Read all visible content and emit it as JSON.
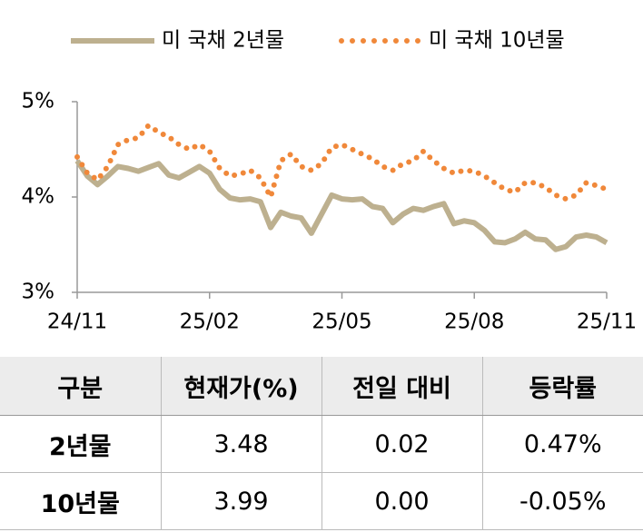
{
  "chart_data": {
    "type": "line",
    "categories": [
      "24/11",
      null,
      null,
      null,
      null,
      null,
      null,
      null,
      null,
      null,
      null,
      null,
      null,
      "25/02",
      null,
      null,
      null,
      null,
      null,
      null,
      null,
      null,
      null,
      null,
      null,
      null,
      "25/05",
      null,
      null,
      null,
      null,
      null,
      null,
      null,
      null,
      null,
      null,
      null,
      null,
      "25/08",
      null,
      null,
      null,
      null,
      null,
      null,
      null,
      null,
      null,
      null,
      null,
      null,
      "25/11"
    ],
    "series": [
      {
        "name": "미 국채 2년물",
        "color": "#bdb08f",
        "style": "solid",
        "values": [
          4.38,
          4.22,
          4.13,
          4.22,
          4.32,
          4.3,
          4.27,
          4.31,
          4.35,
          4.23,
          4.2,
          4.26,
          4.32,
          4.25,
          4.08,
          3.99,
          3.97,
          3.98,
          3.95,
          3.68,
          3.84,
          3.8,
          3.78,
          3.62,
          3.82,
          4.02,
          3.98,
          3.97,
          3.98,
          3.9,
          3.88,
          3.73,
          3.82,
          3.88,
          3.86,
          3.9,
          3.93,
          3.72,
          3.75,
          3.73,
          3.65,
          3.53,
          3.52,
          3.56,
          3.63,
          3.56,
          3.55,
          3.45,
          3.48,
          3.58,
          3.6,
          3.58,
          3.52
        ]
      },
      {
        "name": "미 국채 10년물",
        "color": "#f0883a",
        "style": "dotted",
        "values": [
          4.42,
          4.25,
          4.18,
          4.32,
          4.55,
          4.6,
          4.62,
          4.75,
          4.68,
          4.63,
          4.55,
          4.5,
          4.55,
          4.48,
          4.3,
          4.22,
          4.24,
          4.28,
          4.2,
          4.0,
          4.38,
          4.45,
          4.32,
          4.28,
          4.35,
          4.52,
          4.55,
          4.5,
          4.45,
          4.4,
          4.32,
          4.28,
          4.35,
          4.38,
          4.48,
          4.38,
          4.3,
          4.25,
          4.28,
          4.27,
          4.22,
          4.15,
          4.08,
          4.05,
          4.15,
          4.15,
          4.1,
          4.02,
          3.98,
          4.02,
          4.15,
          4.12,
          4.08
        ]
      }
    ],
    "ylim": [
      3,
      5
    ],
    "yticks": [
      {
        "value": 3,
        "label": "3%"
      },
      {
        "value": 4,
        "label": "4%"
      },
      {
        "value": 5,
        "label": "5%"
      }
    ],
    "grid": false,
    "legend": "top"
  },
  "table": {
    "header": [
      "구분",
      "현재가(%)",
      "전일 대비",
      "등락률"
    ],
    "rows": [
      [
        "2년물",
        "3.48",
        "0.02",
        "0.47%"
      ],
      [
        "10년물",
        "3.99",
        "0.00",
        "-0.05%"
      ]
    ]
  }
}
